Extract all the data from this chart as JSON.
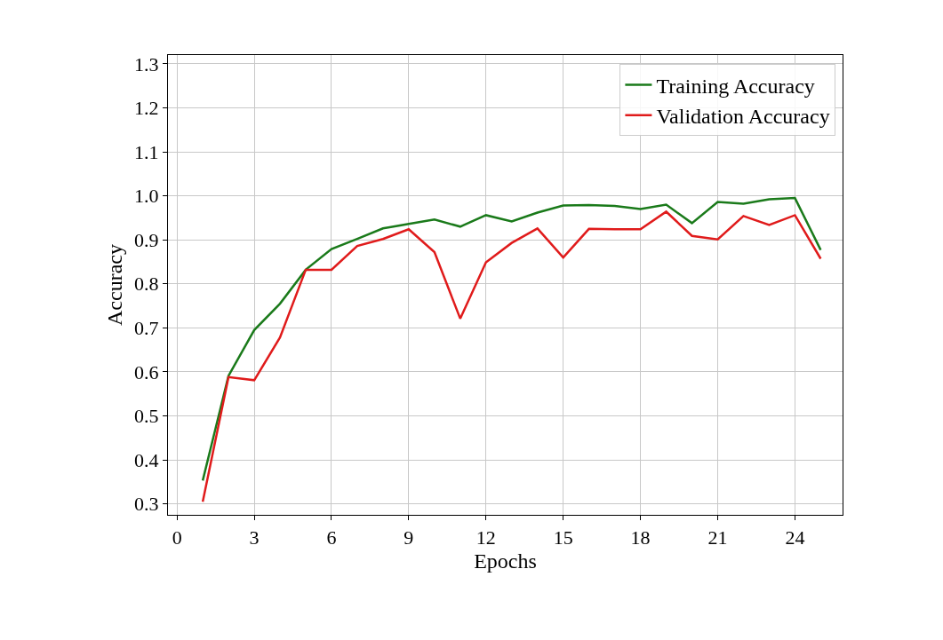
{
  "chart_data": {
    "type": "line",
    "xlabel": "Epochs",
    "ylabel": "Accuracy",
    "x": [
      1,
      2,
      3,
      4,
      5,
      6,
      7,
      8,
      9,
      10,
      11,
      12,
      13,
      14,
      15,
      16,
      17,
      18,
      19,
      20,
      21,
      22,
      23,
      24,
      25
    ],
    "series": [
      {
        "name": "Training Accuracy",
        "color": "#1a7a1a",
        "values": [
          0.353,
          0.591,
          0.695,
          0.755,
          0.832,
          0.879,
          0.902,
          0.926,
          0.936,
          0.946,
          0.93,
          0.956,
          0.942,
          0.962,
          0.978,
          0.979,
          0.977,
          0.97,
          0.98,
          0.938,
          0.986,
          0.982,
          0.992,
          0.995,
          0.877
        ]
      },
      {
        "name": "Validation Accuracy",
        "color": "#e01b1b",
        "values": [
          0.305,
          0.588,
          0.581,
          0.678,
          0.832,
          0.832,
          0.886,
          0.902,
          0.924,
          0.872,
          0.721,
          0.849,
          0.893,
          0.926,
          0.86,
          0.925,
          0.924,
          0.924,
          0.964,
          0.909,
          0.901,
          0.954,
          0.934,
          0.956,
          0.857
        ]
      }
    ],
    "xlim": [
      -0.35,
      25.85
    ],
    "xticks": [
      0,
      3,
      6,
      9,
      12,
      15,
      18,
      21,
      24
    ],
    "ylim": [
      0.275,
      1.32
    ],
    "yticks": [
      0.3,
      0.4,
      0.5,
      0.6,
      0.7,
      0.8,
      0.9,
      {
        "value": 1.0,
        "label": "1.0"
      },
      1.1,
      1.2,
      1.3
    ],
    "grid": true,
    "legend": "top right",
    "line_style": "solid",
    "marker": "none"
  }
}
